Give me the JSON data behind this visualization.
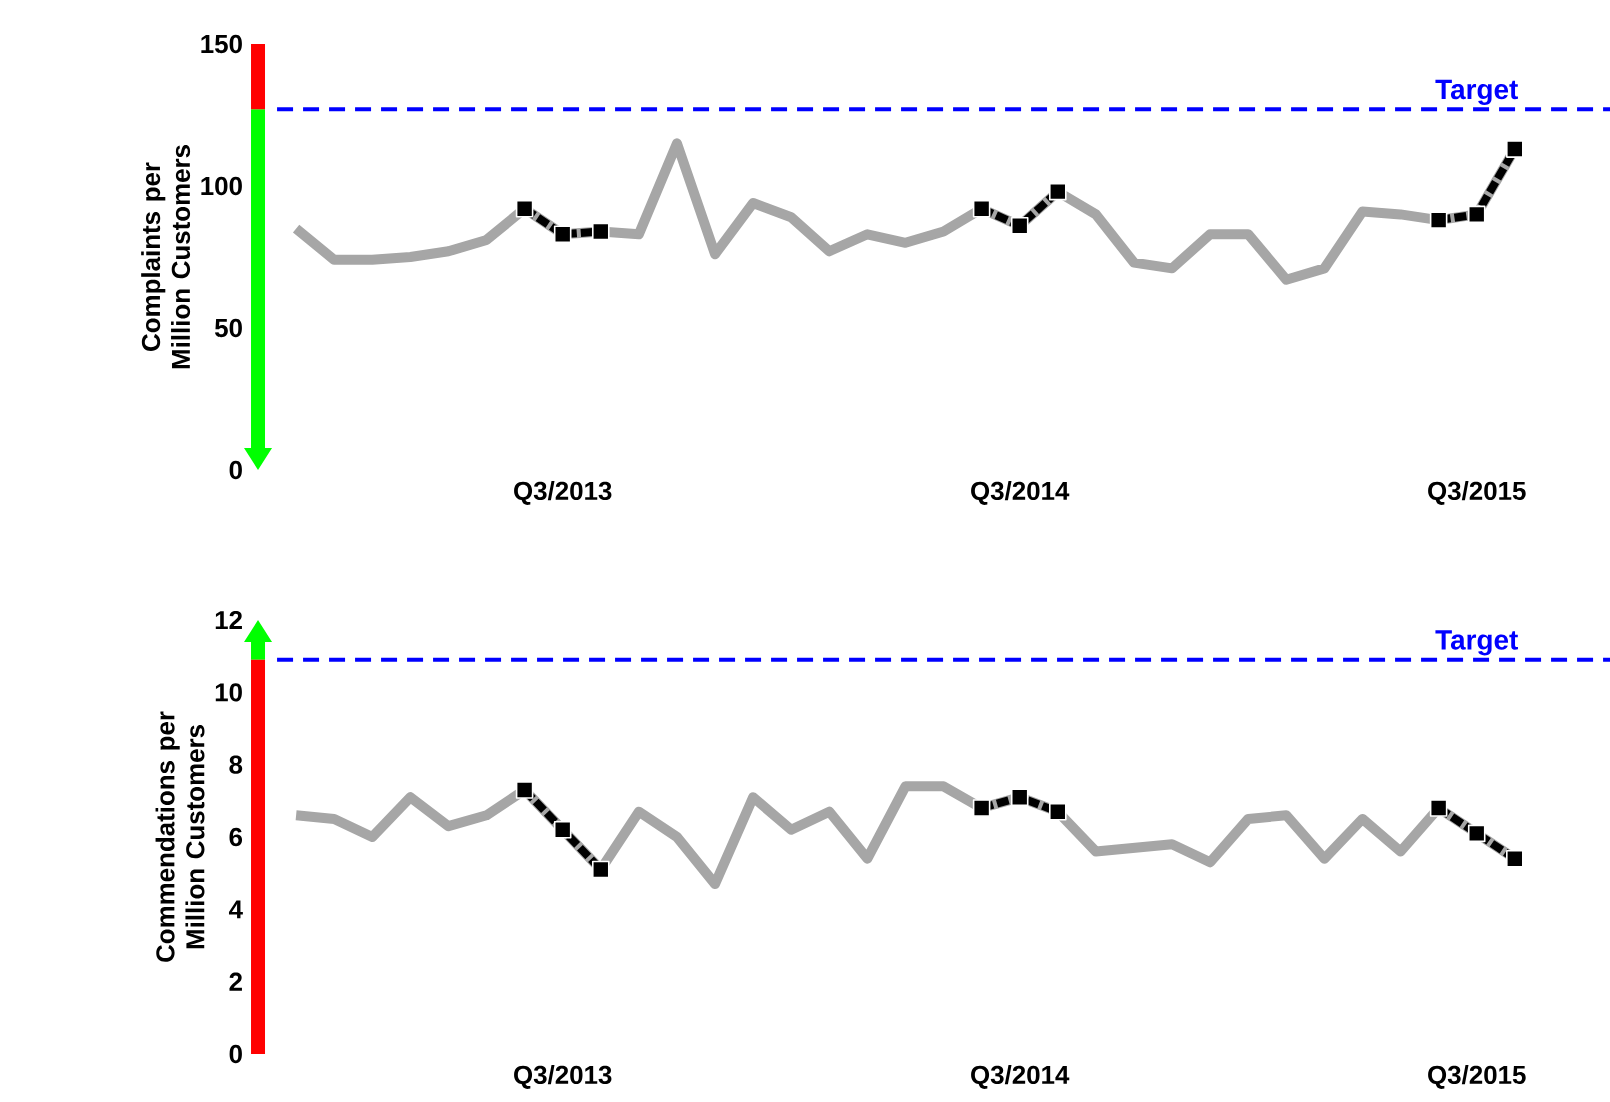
{
  "chart_data": [
    {
      "type": "line",
      "ylabel": "Complaints per Million Customers",
      "categories": [
        null,
        null,
        null,
        null,
        null,
        null,
        null,
        "Q3/2013",
        null,
        null,
        null,
        null,
        null,
        null,
        null,
        null,
        null,
        null,
        null,
        "Q3/2014",
        null,
        null,
        null,
        null,
        null,
        null,
        null,
        null,
        null,
        null,
        null,
        "Q3/2015",
        null
      ],
      "ylim": [
        0,
        150
      ],
      "yticks": [
        0,
        50,
        100,
        150
      ],
      "grid": false,
      "series": [
        {
          "color": "#a6a6a6",
          "values": [
            85,
            74,
            74,
            75,
            77,
            81,
            92,
            83,
            84,
            83,
            115,
            76,
            94,
            89,
            77,
            83,
            80,
            84,
            92,
            86,
            98,
            90,
            73,
            71,
            83,
            83,
            67,
            71,
            91,
            90,
            88,
            90,
            113
          ]
        },
        {
          "color": "#000000",
          "marker": "square",
          "line_style": "dashed",
          "values": [
            null,
            null,
            null,
            null,
            null,
            null,
            92,
            83,
            84,
            null,
            null,
            null,
            null,
            null,
            null,
            null,
            null,
            null,
            92,
            86,
            98,
            null,
            null,
            null,
            null,
            null,
            null,
            null,
            null,
            null,
            88,
            90,
            113
          ]
        }
      ],
      "ref_lines": [
        {
          "axis": "y",
          "value": 127,
          "label": "Target",
          "color": "#0000ff",
          "line_style": "dashed"
        }
      ]
    },
    {
      "type": "line",
      "ylabel": "Commendations per Million Customers",
      "categories": [
        null,
        null,
        null,
        null,
        null,
        null,
        null,
        "Q3/2013",
        null,
        null,
        null,
        null,
        null,
        null,
        null,
        null,
        null,
        null,
        null,
        "Q3/2014",
        null,
        null,
        null,
        null,
        null,
        null,
        null,
        null,
        null,
        null,
        null,
        "Q3/2015",
        null
      ],
      "ylim": [
        0,
        12
      ],
      "yticks": [
        0,
        2,
        4,
        6,
        8,
        10,
        12
      ],
      "grid": false,
      "series": [
        {
          "color": "#a6a6a6",
          "values": [
            6.6,
            6.5,
            6.0,
            7.1,
            6.3,
            6.6,
            7.3,
            6.2,
            5.1,
            6.7,
            6.0,
            4.7,
            7.1,
            6.2,
            6.7,
            5.4,
            7.4,
            7.4,
            6.8,
            7.1,
            6.7,
            5.6,
            5.7,
            5.8,
            5.3,
            6.5,
            6.6,
            5.4,
            6.5,
            5.6,
            6.8,
            6.1,
            5.4
          ]
        },
        {
          "color": "#000000",
          "marker": "square",
          "line_style": "dashed",
          "values": [
            null,
            null,
            null,
            null,
            null,
            null,
            7.3,
            6.2,
            5.1,
            null,
            null,
            null,
            null,
            null,
            null,
            null,
            null,
            null,
            6.8,
            7.1,
            6.7,
            null,
            null,
            null,
            null,
            null,
            null,
            null,
            null,
            null,
            6.8,
            6.1,
            5.4
          ]
        }
      ],
      "ref_lines": [
        {
          "axis": "y",
          "value": 10.9,
          "label": "Target",
          "color": "#0000ff",
          "line_style": "dashed"
        }
      ]
    }
  ]
}
